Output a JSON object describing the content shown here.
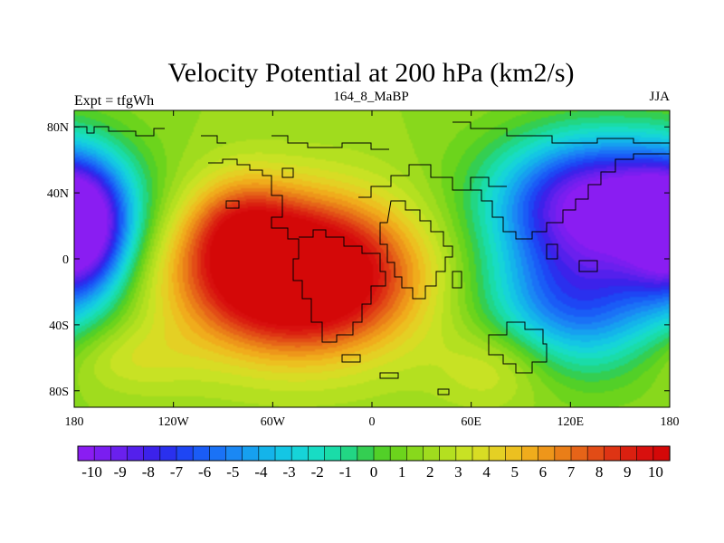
{
  "chart_data": {
    "type": "heatmap",
    "title": "Velocity Potential at 200 hPa (km2/s)",
    "left_label": "Expt = tfgWh",
    "center_label": "164_8_MaBP",
    "right_label": "JJA",
    "x_range": [
      -180,
      180
    ],
    "y_range": [
      -90,
      90
    ],
    "x_ticks": [
      {
        "value": -180,
        "label": "180"
      },
      {
        "value": -120,
        "label": "120W"
      },
      {
        "value": -60,
        "label": "60W"
      },
      {
        "value": 0,
        "label": "0"
      },
      {
        "value": 60,
        "label": "60E"
      },
      {
        "value": 120,
        "label": "120E"
      },
      {
        "value": 180,
        "label": "180"
      }
    ],
    "y_ticks": [
      {
        "value": 80,
        "label": "80N"
      },
      {
        "value": 40,
        "label": "40N"
      },
      {
        "value": 0,
        "label": "0"
      },
      {
        "value": -40,
        "label": "40S"
      },
      {
        "value": -80,
        "label": "80S"
      }
    ],
    "colorbar": {
      "min": -10.5,
      "max": 10.5,
      "step": 0.5,
      "labels": [
        "-10",
        "-9",
        "-8",
        "-7",
        "-6",
        "-5",
        "-4",
        "-3",
        "-2",
        "-1",
        "0",
        "1",
        "2",
        "3",
        "4",
        "5",
        "6",
        "7",
        "8",
        "9",
        "10"
      ],
      "colors": [
        "#8A1DF2",
        "#7A1EF0",
        "#6A20EE",
        "#5420EC",
        "#3C22EA",
        "#2A30EE",
        "#1E46F4",
        "#1A5CF6",
        "#1A72F6",
        "#1A88F4",
        "#16A0F0",
        "#14B4EA",
        "#14C6E4",
        "#16D4D8",
        "#18DCC4",
        "#1ADCA8",
        "#22D684",
        "#34CE52",
        "#52D028",
        "#6CD41C",
        "#88D81C",
        "#A0DC1E",
        "#B4E020",
        "#C8E224",
        "#D8DC24",
        "#E4D024",
        "#ECC020",
        "#F0AC1C",
        "#EE961A",
        "#EA7E18",
        "#E66418",
        "#E24C16",
        "#DE3414",
        "#DA2010",
        "#D8100E",
        "#D40808"
      ]
    },
    "field_description": "Positive anomaly centered over Atlantic/South America near 30W 15S (~10 km2/s); negative anomaly centered over Asia/Pacific near 130E 35N (~-10 km2/s) and western Pacific near 170W 10N (~-9)"
  }
}
